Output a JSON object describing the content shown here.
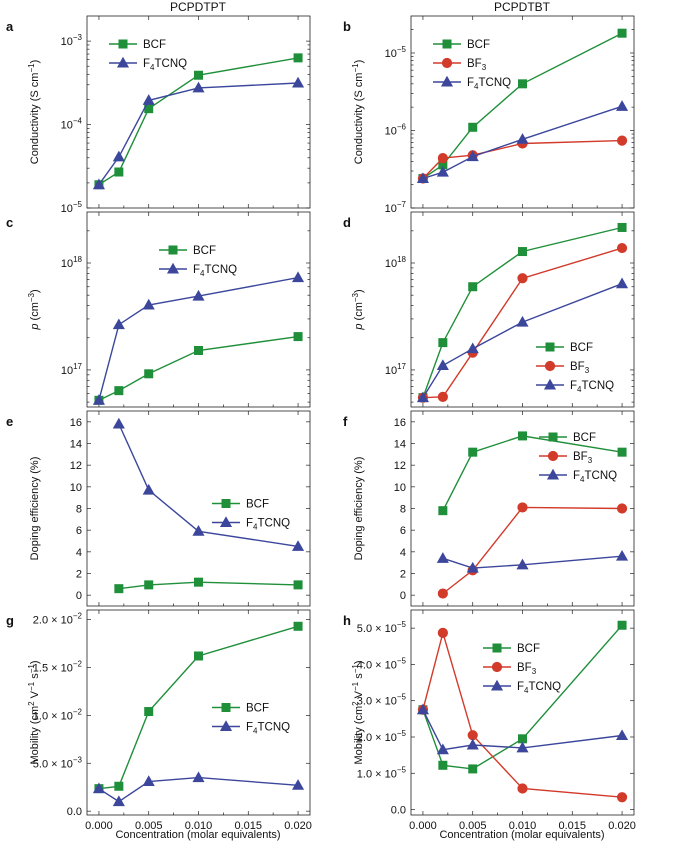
{
  "figure": {
    "column_titles": [
      "PCPDTPT",
      "PCPDTBT"
    ],
    "xlabel": "Concentration (molar equivalents)",
    "x_tick_labels": [
      "0.000",
      "0.005",
      "0.010",
      "0.015",
      "0.020"
    ]
  },
  "colors": {
    "BCF": "#1f8f3a",
    "BF3": "#d23a2a",
    "F4TCNQ": "#3c479c"
  },
  "chart_data": [
    {
      "panel": "a",
      "type": "line",
      "yscale": "log",
      "ylim": [
        1e-05,
        0.002
      ],
      "ylabel": "Conductivity (S cm−1)",
      "yticks": [
        {
          "v": 1e-05,
          "base": "10",
          "exp": "−5"
        },
        {
          "v": 0.0001,
          "base": "10",
          "exp": "−4"
        },
        {
          "v": 0.001,
          "base": "10",
          "exp": "−3"
        }
      ],
      "series": [
        {
          "name": "BCF",
          "label": "BCF",
          "marker": "square",
          "x": [
            0,
            0.002,
            0.005,
            0.01,
            0.02
          ],
          "y": [
            1.9e-05,
            2.7e-05,
            0.000155,
            0.00039,
            0.00063
          ]
        },
        {
          "name": "F4TCNQ",
          "label": "F4TCNQ",
          "marker": "triangle",
          "x": [
            0,
            0.002,
            0.005,
            0.01,
            0.02
          ],
          "y": [
            1.9e-05,
            4.1e-05,
            0.000195,
            0.000275,
            0.000315
          ]
        }
      ],
      "legend": "upper-left"
    },
    {
      "panel": "b",
      "type": "line",
      "yscale": "log",
      "ylim": [
        1e-07,
        3e-05
      ],
      "ylabel": "Conductivity (S cm−1)",
      "yticks": [
        {
          "v": 1e-07,
          "base": "10",
          "exp": "−7"
        },
        {
          "v": 1e-06,
          "base": "10",
          "exp": "−6"
        },
        {
          "v": 1e-05,
          "base": "10",
          "exp": "−5"
        }
      ],
      "series": [
        {
          "name": "BCF",
          "label": "BCF",
          "marker": "square",
          "x": [
            0,
            0.002,
            0.005,
            0.01,
            0.02
          ],
          "y": [
            2.4e-07,
            3.6e-07,
            1.1e-06,
            4e-06,
            1.8e-05
          ]
        },
        {
          "name": "BF3",
          "label": "BF3",
          "marker": "circle",
          "x": [
            0,
            0.002,
            0.005,
            0.01,
            0.02
          ],
          "y": [
            2.4e-07,
            4.4e-07,
            4.8e-07,
            6.8e-07,
            7.4e-07
          ]
        },
        {
          "name": "F4TCNQ",
          "label": "F4TCNQ",
          "marker": "triangle",
          "x": [
            0,
            0.002,
            0.005,
            0.01,
            0.02
          ],
          "y": [
            2.4e-07,
            2.9e-07,
            4.6e-07,
            7.7e-07,
            2.05e-06
          ]
        }
      ],
      "legend": "upper-left"
    },
    {
      "panel": "c",
      "type": "line",
      "yscale": "log",
      "ylim": [
        4.5e+16,
        3e+18
      ],
      "ylabel": "p (cm−3)",
      "yticks": [
        {
          "v": 1e+17,
          "base": "10",
          "exp": "17"
        },
        {
          "v": 1e+18,
          "base": "10",
          "exp": "18"
        }
      ],
      "series": [
        {
          "name": "BCF",
          "label": "BCF",
          "marker": "square",
          "x": [
            0,
            0.002,
            0.005,
            0.01,
            0.02
          ],
          "y": [
            5.2e+16,
            6.4e+16,
            9.2e+16,
            1.52e+17,
            2.05e+17
          ]
        },
        {
          "name": "F4TCNQ",
          "label": "F4TCNQ",
          "marker": "triangle",
          "x": [
            0,
            0.002,
            0.005,
            0.01,
            0.02
          ],
          "y": [
            5.2e+16,
            2.65e+17,
            4.05e+17,
            4.9e+17,
            7.3e+17
          ]
        }
      ],
      "legend": "upper-center"
    },
    {
      "panel": "d",
      "type": "line",
      "yscale": "log",
      "ylim": [
        4.5e+16,
        3e+18
      ],
      "ylabel": "p (cm−3)",
      "yticks": [
        {
          "v": 1e+17,
          "base": "10",
          "exp": "17"
        },
        {
          "v": 1e+18,
          "base": "10",
          "exp": "18"
        }
      ],
      "series": [
        {
          "name": "BCF",
          "label": "BCF",
          "marker": "square",
          "x": [
            0,
            0.002,
            0.005,
            0.01,
            0.02
          ],
          "y": [
            5.5e+16,
            1.8e+17,
            6e+17,
            1.28e+18,
            2.15e+18
          ]
        },
        {
          "name": "BF3",
          "label": "BF3",
          "marker": "circle",
          "x": [
            0,
            0.002,
            0.005,
            0.01,
            0.02
          ],
          "y": [
            5.5e+16,
            5.6e+16,
            1.45e+17,
            7.2e+17,
            1.38e+18
          ]
        },
        {
          "name": "F4TCNQ",
          "label": "F4TCNQ",
          "marker": "triangle",
          "x": [
            0,
            0.002,
            0.005,
            0.01,
            0.02
          ],
          "y": [
            5.5e+16,
            1.1e+17,
            1.58e+17,
            2.8e+17,
            6.4e+17
          ]
        }
      ],
      "legend": "lower-right"
    },
    {
      "panel": "e",
      "type": "line",
      "yscale": "linear",
      "ylim": [
        -1,
        17
      ],
      "ylabel": "Doping efficiency (%)",
      "yticks": [
        {
          "v": 0,
          "label": "0"
        },
        {
          "v": 2,
          "label": "2"
        },
        {
          "v": 4,
          "label": "4"
        },
        {
          "v": 6,
          "label": "6"
        },
        {
          "v": 8,
          "label": "8"
        },
        {
          "v": 10,
          "label": "10"
        },
        {
          "v": 12,
          "label": "12"
        },
        {
          "v": 14,
          "label": "14"
        },
        {
          "v": 16,
          "label": "16"
        }
      ],
      "series": [
        {
          "name": "BCF",
          "label": "BCF",
          "marker": "square",
          "x": [
            0.002,
            0.005,
            0.01,
            0.02
          ],
          "y": [
            0.6,
            0.95,
            1.2,
            0.95
          ]
        },
        {
          "name": "F4TCNQ",
          "label": "F4TCNQ",
          "marker": "triangle",
          "x": [
            0.002,
            0.005,
            0.01,
            0.02
          ],
          "y": [
            15.8,
            9.7,
            5.9,
            4.5
          ]
        }
      ],
      "legend": "center-right"
    },
    {
      "panel": "f",
      "type": "line",
      "yscale": "linear",
      "ylim": [
        -1,
        17
      ],
      "ylabel": "Doping efficiency (%)",
      "yticks": [
        {
          "v": 0,
          "label": "0"
        },
        {
          "v": 2,
          "label": "2"
        },
        {
          "v": 4,
          "label": "4"
        },
        {
          "v": 6,
          "label": "6"
        },
        {
          "v": 8,
          "label": "8"
        },
        {
          "v": 10,
          "label": "10"
        },
        {
          "v": 12,
          "label": "12"
        },
        {
          "v": 14,
          "label": "14"
        },
        {
          "v": 16,
          "label": "16"
        }
      ],
      "series": [
        {
          "name": "BCF",
          "label": "BCF",
          "marker": "square",
          "x": [
            0.002,
            0.005,
            0.01,
            0.02
          ],
          "y": [
            7.8,
            13.2,
            14.7,
            13.2
          ]
        },
        {
          "name": "BF3",
          "label": "BF3",
          "marker": "circle",
          "x": [
            0.002,
            0.005,
            0.01,
            0.02
          ],
          "y": [
            0.15,
            2.3,
            8.1,
            8.0
          ]
        },
        {
          "name": "F4TCNQ",
          "label": "F4TCNQ",
          "marker": "triangle",
          "x": [
            0.002,
            0.005,
            0.01,
            0.02
          ],
          "y": [
            3.4,
            2.5,
            2.8,
            3.6
          ]
        }
      ],
      "legend": "upper-right"
    },
    {
      "panel": "g",
      "type": "line",
      "yscale": "linear",
      "ylim": [
        -0.0004,
        0.021
      ],
      "ylabel": "Mobility (cm2 V−1 s−1)",
      "yticks": [
        {
          "v": 0,
          "label": "0.0"
        },
        {
          "v": 0.005,
          "base": "5.0 × 10",
          "exp": "−3"
        },
        {
          "v": 0.01,
          "base": "1.0 × 10",
          "exp": "−2"
        },
        {
          "v": 0.015,
          "base": "1.5 × 10",
          "exp": "−2"
        },
        {
          "v": 0.02,
          "base": "2.0 × 10",
          "exp": "−2"
        }
      ],
      "series": [
        {
          "name": "BCF",
          "label": "BCF",
          "marker": "square",
          "x": [
            0,
            0.002,
            0.005,
            0.01,
            0.02
          ],
          "y": [
            0.00235,
            0.0026,
            0.0104,
            0.0162,
            0.0193
          ]
        },
        {
          "name": "F4TCNQ",
          "label": "F4TCNQ",
          "marker": "triangle",
          "x": [
            0,
            0.002,
            0.005,
            0.01,
            0.02
          ],
          "y": [
            0.00235,
            0.001,
            0.0031,
            0.0035,
            0.0027
          ]
        }
      ],
      "legend": "center-right"
    },
    {
      "panel": "h",
      "type": "line",
      "yscale": "linear",
      "ylim": [
        -1.5e-06,
        5.5e-05
      ],
      "ylabel": "Mobility (cm2 V−1 s−1)",
      "yticks": [
        {
          "v": 0,
          "label": "0.0"
        },
        {
          "v": 1e-05,
          "base": "1.0 × 10",
          "exp": "−5"
        },
        {
          "v": 2e-05,
          "base": "2.0 × 10",
          "exp": "−5"
        },
        {
          "v": 3e-05,
          "base": "3.0 × 10",
          "exp": "−5"
        },
        {
          "v": 4e-05,
          "base": "4.0 × 10",
          "exp": "−5"
        },
        {
          "v": 5e-05,
          "base": "5.0 × 10",
          "exp": "−5"
        }
      ],
      "series": [
        {
          "name": "BCF",
          "label": "BCF",
          "marker": "square",
          "x": [
            0,
            0.002,
            0.005,
            0.01,
            0.02
          ],
          "y": [
            2.75e-05,
            1.22e-05,
            1.12e-05,
            1.95e-05,
            5.08e-05
          ]
        },
        {
          "name": "BF3",
          "label": "BF3",
          "marker": "circle",
          "x": [
            0,
            0.002,
            0.005,
            0.01,
            0.02
          ],
          "y": [
            2.75e-05,
            4.87e-05,
            2.05e-05,
            5.8e-06,
            3.4e-06
          ]
        },
        {
          "name": "F4TCNQ",
          "label": "F4TCNQ",
          "marker": "triangle",
          "x": [
            0,
            0.002,
            0.005,
            0.01,
            0.02
          ],
          "y": [
            2.75e-05,
            1.65e-05,
            1.78e-05,
            1.7e-05,
            2.04e-05
          ]
        }
      ],
      "legend": "upper-center"
    }
  ]
}
